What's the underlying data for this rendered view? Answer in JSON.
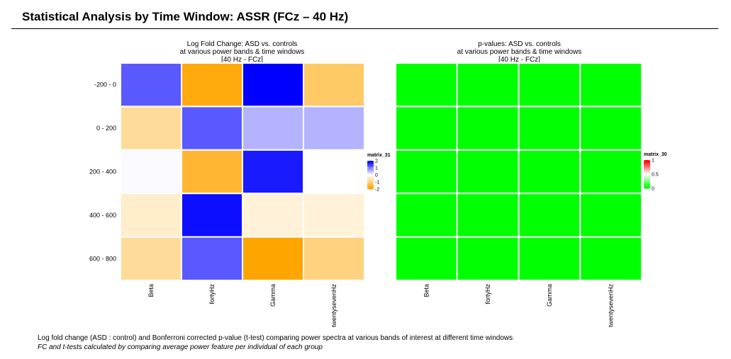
{
  "page": {
    "title": "Statistical Analysis by Time Window: ASSR (FCz – 40 Hz)",
    "caption_line1": "Log fold change (ASD : control) and Bonferroni corrected p-value (t-test) comparing power spectra at various bands of interest at different time windows",
    "caption_line2": "FC and t-tests calculated by comparing average power feature per individual of each group"
  },
  "chart_data": [
    {
      "type": "heatmap",
      "title_lines": [
        "Log Fold Change: ASD vs. controls",
        "at various power bands & time windows",
        "[40 Hz - FCz]"
      ],
      "x_categories": [
        "Beta",
        "fortyHz",
        "Gamma",
        "twentysevenHz"
      ],
      "y_categories": [
        "-200 - 0",
        "0 - 200",
        "200 - 400",
        "400 - 600",
        "600 - 800"
      ],
      "values": [
        [
          1.3,
          -1.9,
          2.0,
          -1.2
        ],
        [
          -0.8,
          1.3,
          0.6,
          0.6
        ],
        [
          0.05,
          -1.6,
          1.8,
          0.0
        ],
        [
          -0.4,
          1.9,
          -0.3,
          -0.3
        ],
        [
          -0.8,
          1.3,
          -2.0,
          -1.0
        ]
      ],
      "legend": {
        "title": "matrix_31",
        "ticks": [
          2,
          1,
          0,
          -1,
          -2
        ],
        "colors": {
          "high": "#0000ff",
          "mid": "#ffffff",
          "low": "#ffa500"
        },
        "range": [
          -2,
          2
        ]
      }
    },
    {
      "type": "heatmap",
      "title_lines": [
        "p-values: ASD vs. controls",
        "at various power bands & time windows",
        "[40 Hz - FCz]"
      ],
      "x_categories": [
        "Beta",
        "fortyHz",
        "Gamma",
        "twentysevenHz"
      ],
      "y_categories": [
        "-200 - 0",
        "0 - 200",
        "200 - 400",
        "400 - 600",
        "600 - 800"
      ],
      "values": [
        [
          0,
          0,
          0,
          0
        ],
        [
          0,
          0,
          0,
          0
        ],
        [
          0,
          0,
          0,
          0
        ],
        [
          0,
          0,
          0,
          0
        ],
        [
          0,
          0,
          0,
          0
        ]
      ],
      "legend": {
        "title": "matrix_30",
        "ticks": [
          1,
          0.5,
          0
        ],
        "colors": {
          "high": "#ff0000",
          "mid": "#ffffff",
          "low": "#00ff00"
        },
        "range": [
          0,
          1
        ]
      }
    }
  ]
}
